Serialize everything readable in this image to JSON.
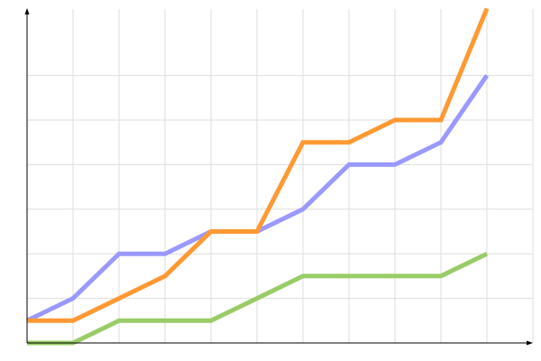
{
  "chart_data": {
    "type": "line",
    "title": "",
    "xlabel": "",
    "ylabel": "",
    "x": [
      0,
      1,
      2,
      3,
      4,
      5,
      6,
      7,
      8,
      9,
      10
    ],
    "xlim": [
      0,
      11
    ],
    "ylim": [
      0,
      7.5
    ],
    "grid": true,
    "legend": "none",
    "series": [
      {
        "color": "#9999ff",
        "values": [
          0.5,
          1,
          2,
          2,
          2.5,
          2.5,
          3,
          4,
          4,
          4.5,
          6
        ]
      },
      {
        "color": "#99cc66",
        "values": [
          0,
          0,
          0.5,
          0.5,
          0.5,
          1,
          1.5,
          1.5,
          1.5,
          1.5,
          2
        ]
      },
      {
        "color": "#ff9933",
        "values": [
          0.5,
          0.5,
          1,
          1.5,
          2.5,
          2.5,
          4.5,
          4.5,
          5,
          5,
          7.5
        ]
      }
    ]
  }
}
